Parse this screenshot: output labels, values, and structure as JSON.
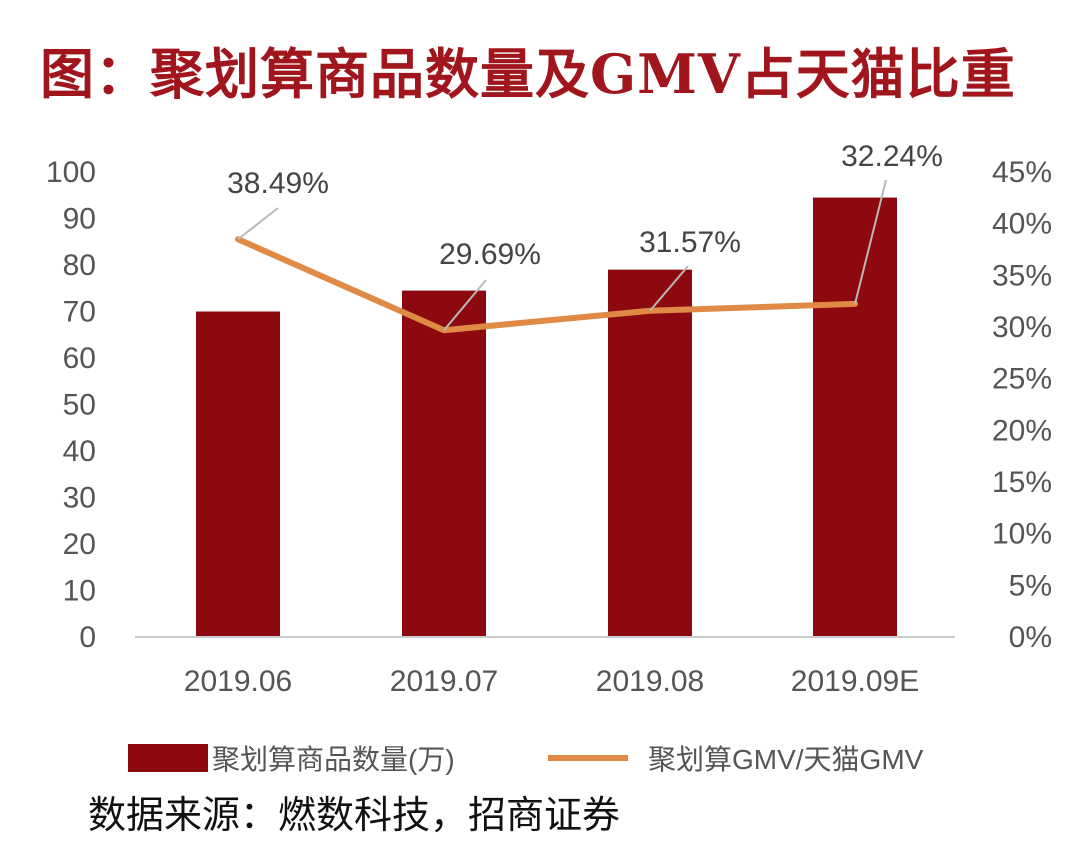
{
  "title": "图：聚划算商品数量及GMV占天猫比重",
  "source": "数据来源：燃数科技，招商证券",
  "colors": {
    "bar": "#8c0a0f",
    "line": "#e08a45",
    "title": "#a1161c",
    "axis": "#cccccc",
    "leader": "#b8b8b8"
  },
  "chart_data": {
    "type": "bar",
    "categories": [
      "2019.06",
      "2019.07",
      "2019.08",
      "2019.09E"
    ],
    "series": [
      {
        "name": "聚划算商品数量(万)",
        "type": "bar",
        "axis": "left",
        "values": [
          70,
          74.5,
          79,
          94.5
        ]
      },
      {
        "name": "聚划算GMV/天猫GMV",
        "type": "line",
        "axis": "right",
        "values": [
          38.49,
          29.69,
          31.57,
          32.24
        ],
        "labels": [
          "38.49%",
          "29.69%",
          "31.57%",
          "32.24%"
        ]
      }
    ],
    "y_left": {
      "min": 0,
      "max": 100,
      "ticks": [
        "0",
        "10",
        "20",
        "30",
        "40",
        "50",
        "60",
        "70",
        "80",
        "90",
        "100"
      ]
    },
    "y_right": {
      "min": 0,
      "max": 45,
      "ticks": [
        "0%",
        "5%",
        "10%",
        "15%",
        "20%",
        "25%",
        "30%",
        "35%",
        "40%",
        "45%"
      ]
    },
    "legend_position": "bottom",
    "grid": false
  }
}
